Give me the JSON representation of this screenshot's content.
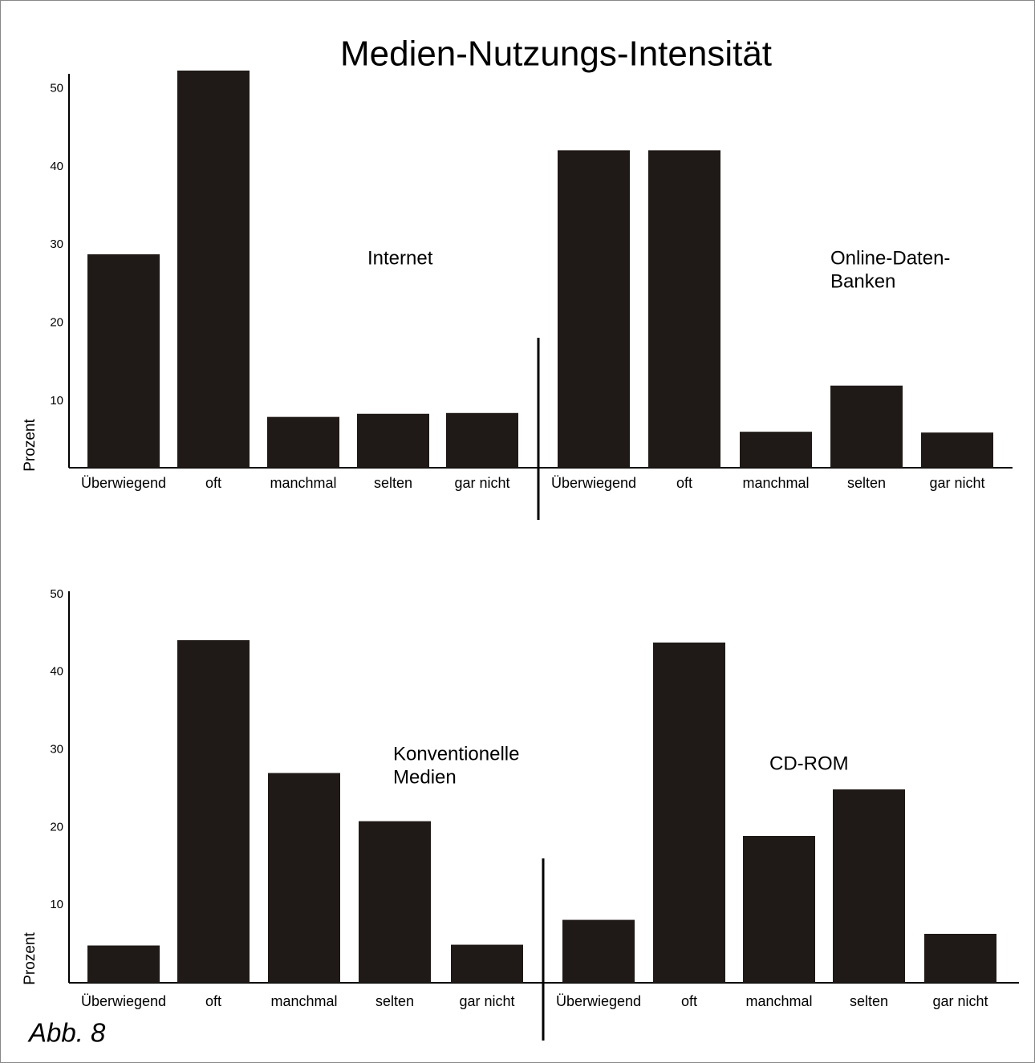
{
  "title": "Medien-Nutzungs-Intensität",
  "caption": "Abb. 8",
  "chart_data": [
    {
      "type": "bar",
      "ylabel": "Prozent",
      "color": "#1f1a17",
      "ylim": [
        1.5,
        52.5
      ],
      "yticks": [
        10,
        20,
        30,
        40,
        50
      ],
      "groups": [
        {
          "label_lines": [
            "Internet"
          ],
          "categories": [
            "Überwiegend",
            "oft",
            "manchmal",
            "selten",
            "gar nicht"
          ],
          "values": [
            28.8,
            52.3,
            8.0,
            8.4,
            8.5
          ]
        },
        {
          "label_lines": [
            "Online-Daten-",
            "Banken"
          ],
          "categories": [
            "Überwiegend",
            "oft",
            "manchmal",
            "selten",
            "gar nicht"
          ],
          "values": [
            42.1,
            42.1,
            6.1,
            12.0,
            6.0
          ]
        }
      ]
    },
    {
      "type": "bar",
      "ylabel": "Prozent",
      "color": "#1f1a17",
      "ylim": [
        0,
        50.5
      ],
      "yticks": [
        10,
        20,
        30,
        40,
        50
      ],
      "groups": [
        {
          "label_lines": [
            "Konventionelle",
            "Medien"
          ],
          "categories": [
            "Überwiegend",
            "oft",
            "manchmal",
            "selten",
            "gar nicht"
          ],
          "values": [
            4.8,
            44.1,
            27.0,
            20.8,
            4.9
          ]
        },
        {
          "label_lines": [
            "CD-ROM"
          ],
          "categories": [
            "Überwiegend",
            "oft",
            "manchmal",
            "selten",
            "gar nicht"
          ],
          "values": [
            8.1,
            43.8,
            18.9,
            24.9,
            6.3
          ]
        }
      ]
    }
  ]
}
